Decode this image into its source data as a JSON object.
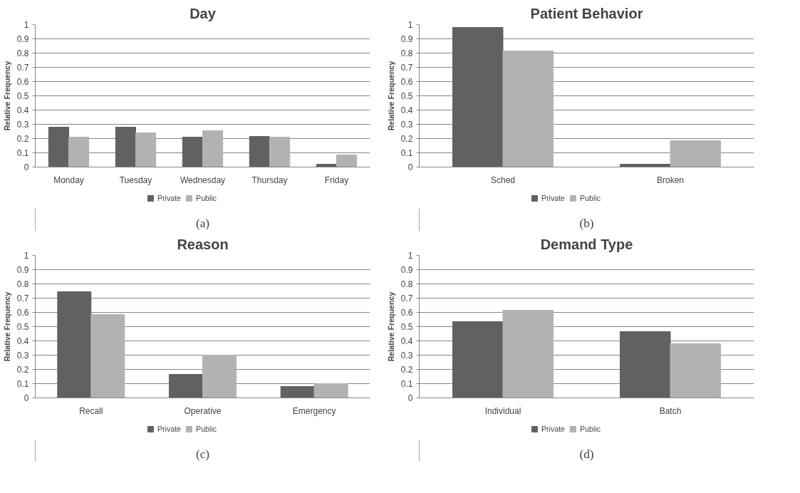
{
  "chart_data": [
    {
      "type": "bar",
      "title": "Day",
      "ylabel": "Relative Frequency",
      "categories": [
        "Monday",
        "Tuesday",
        "Wednesday",
        "Thursday",
        "Friday"
      ],
      "series": [
        {
          "name": "Private",
          "color": "#616161",
          "values": [
            0.28,
            0.28,
            0.21,
            0.215,
            0.02
          ]
        },
        {
          "name": "Public",
          "color": "#b2b2b2",
          "values": [
            0.21,
            0.24,
            0.255,
            0.21,
            0.085
          ]
        }
      ],
      "ylim": [
        0,
        1
      ],
      "yticks": [
        0,
        0.1,
        0.2,
        0.3,
        0.4,
        0.5,
        0.6,
        0.7,
        0.8,
        0.9,
        1
      ],
      "grid": "y",
      "legend": "bottom",
      "annotations": [
        "(a)"
      ]
    },
    {
      "type": "bar",
      "title": "Patient Behavior",
      "ylabel": "Relative Frequency",
      "categories": [
        "Sched",
        "Broken"
      ],
      "series": [
        {
          "name": "Private",
          "color": "#616161",
          "values": [
            0.98,
            0.02
          ]
        },
        {
          "name": "Public",
          "color": "#b2b2b2",
          "values": [
            0.815,
            0.185
          ]
        }
      ],
      "ylim": [
        0,
        1
      ],
      "yticks": [
        0,
        0.1,
        0.2,
        0.3,
        0.4,
        0.5,
        0.6,
        0.7,
        0.8,
        0.9,
        1
      ],
      "grid": "y",
      "legend": "bottom",
      "annotations": [
        "(b)"
      ]
    },
    {
      "type": "bar",
      "title": "Reason",
      "ylabel": "Relative Frequency",
      "categories": [
        "Recall",
        "Operative",
        "Emergency"
      ],
      "series": [
        {
          "name": "Private",
          "color": "#616161",
          "values": [
            0.745,
            0.165,
            0.08
          ]
        },
        {
          "name": "Public",
          "color": "#b2b2b2",
          "values": [
            0.585,
            0.3,
            0.1
          ]
        }
      ],
      "ylim": [
        0,
        1
      ],
      "yticks": [
        0,
        0.1,
        0.2,
        0.3,
        0.4,
        0.5,
        0.6,
        0.7,
        0.8,
        0.9,
        1
      ],
      "grid": "y",
      "legend": "bottom",
      "annotations": [
        "(c)"
      ]
    },
    {
      "type": "bar",
      "title": "Demand Type",
      "ylabel": "Relative Frequency",
      "categories": [
        "Individual",
        "Batch"
      ],
      "series": [
        {
          "name": "Private",
          "color": "#616161",
          "values": [
            0.535,
            0.465
          ]
        },
        {
          "name": "Public",
          "color": "#b2b2b2",
          "values": [
            0.615,
            0.38
          ]
        }
      ],
      "ylim": [
        0,
        1
      ],
      "yticks": [
        0,
        0.1,
        0.2,
        0.3,
        0.4,
        0.5,
        0.6,
        0.7,
        0.8,
        0.9,
        1
      ],
      "grid": "y",
      "legend": "bottom",
      "annotations": [
        "(d)"
      ]
    }
  ]
}
